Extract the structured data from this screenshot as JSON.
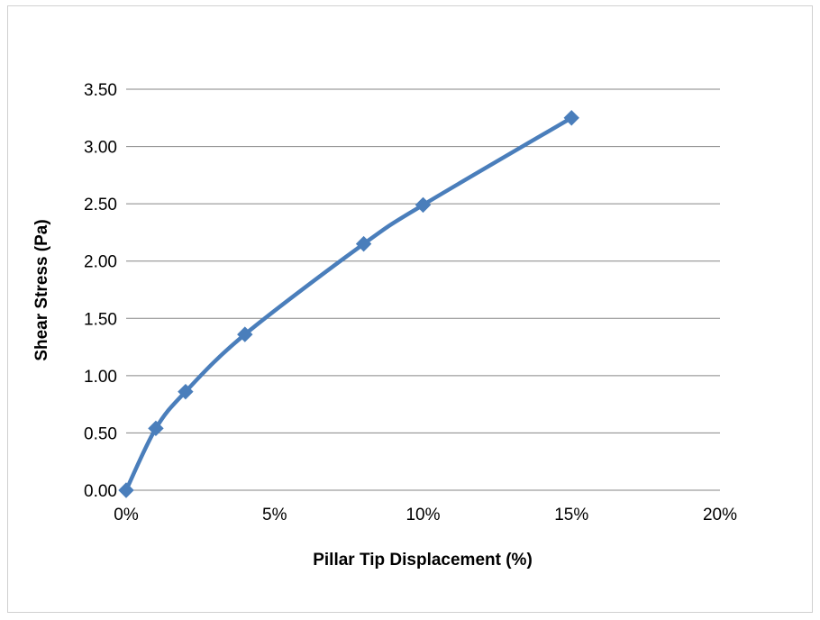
{
  "chart_data": {
    "type": "line",
    "title": "",
    "xlabel": "Pillar Tip Displacement (%)",
    "ylabel": "Shear Stress (Pa)",
    "xlim": [
      0,
      20
    ],
    "ylim": [
      0,
      3.5
    ],
    "x_ticks": [
      "0%",
      "5%",
      "10%",
      "15%",
      "20%"
    ],
    "y_ticks": [
      "0.00",
      "0.50",
      "1.00",
      "1.50",
      "2.00",
      "2.50",
      "3.00",
      "3.50"
    ],
    "grid": "horizontal",
    "legend": "none",
    "series": [
      {
        "x": [
          0,
          1,
          2,
          4,
          8,
          10,
          15
        ],
        "y": [
          0.0,
          0.54,
          0.86,
          1.36,
          2.15,
          2.49,
          3.25
        ],
        "color": "#4a7ebb",
        "marker": "diamond",
        "smooth": true
      }
    ]
  }
}
